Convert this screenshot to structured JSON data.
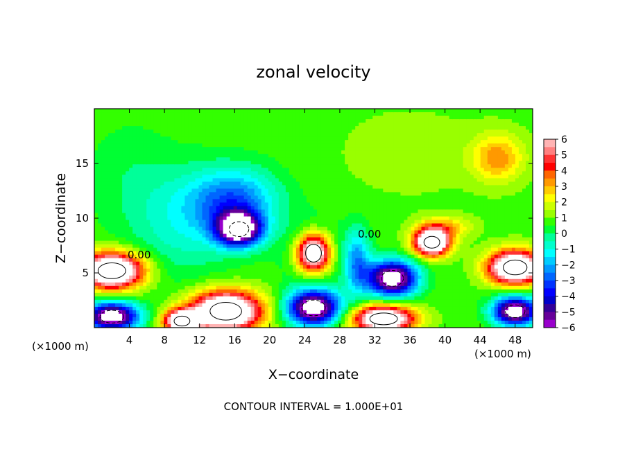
{
  "chart_data": {
    "type": "heatmap",
    "title": "zonal velocity",
    "xlabel": "X−coordinate",
    "ylabel": "Z−coordinate",
    "x_unit_left": "(×1000 m)",
    "x_unit_right": "(×1000 m)",
    "footer": "CONTOUR INTERVAL = 1.000E+01",
    "xlim": [
      0,
      50
    ],
    "ylim": [
      0,
      20
    ],
    "x_ticks": [
      4,
      8,
      12,
      16,
      20,
      24,
      28,
      32,
      36,
      40,
      44,
      48
    ],
    "y_ticks": [
      5,
      10,
      15
    ],
    "contour_labels": [
      "0.00",
      "0.00"
    ],
    "colorbar": {
      "ticks": [
        6,
        5,
        4,
        3,
        2,
        1,
        0,
        -1,
        -2,
        -3,
        -4,
        -5,
        -6
      ],
      "range": [
        -6,
        6
      ],
      "colors": [
        "#ffb3b3",
        "#ff8080",
        "#ff3333",
        "#ff0000",
        "#ff6600",
        "#ff9900",
        "#ffcc00",
        "#ffff00",
        "#ccff00",
        "#99ff00",
        "#33ff00",
        "#00ff33",
        "#00ff99",
        "#00ffcc",
        "#00ffff",
        "#00ccff",
        "#0099ff",
        "#0066ff",
        "#0033ff",
        "#0000ff",
        "#0000cc",
        "#330099",
        "#660099",
        "#9900cc"
      ]
    },
    "blobs": [
      {
        "x": 16.5,
        "z": 9.0,
        "sx": 2.5,
        "sy": 1.5,
        "v": -8
      },
      {
        "x": 16.0,
        "z": 11.5,
        "sx": 5.0,
        "sy": 3.0,
        "v": -3.5
      },
      {
        "x": 10.0,
        "z": 9.5,
        "sx": 6.0,
        "sy": 5.0,
        "v": -1.5
      },
      {
        "x": 25.0,
        "z": 6.8,
        "sx": 2.0,
        "sy": 1.8,
        "v": 9
      },
      {
        "x": 25.0,
        "z": 6.8,
        "sx": 3.2,
        "sy": 2.8,
        "v": -2
      },
      {
        "x": 34.0,
        "z": 4.5,
        "sx": 2.8,
        "sy": 1.6,
        "v": -8
      },
      {
        "x": 38.5,
        "z": 7.8,
        "sx": 2.0,
        "sy": 1.2,
        "v": 9
      },
      {
        "x": 2.0,
        "z": 5.2,
        "sx": 3.5,
        "sy": 1.6,
        "v": 9
      },
      {
        "x": 2.0,
        "z": 1.0,
        "sx": 3.0,
        "sy": 1.3,
        "v": -8
      },
      {
        "x": 15.0,
        "z": 1.5,
        "sx": 4.0,
        "sy": 1.8,
        "v": 9
      },
      {
        "x": 10.0,
        "z": 0.6,
        "sx": 2.0,
        "sy": 1.0,
        "v": 8
      },
      {
        "x": 25.0,
        "z": 1.8,
        "sx": 3.0,
        "sy": 1.6,
        "v": -8
      },
      {
        "x": 33.0,
        "z": 0.8,
        "sx": 3.5,
        "sy": 1.2,
        "v": 8
      },
      {
        "x": 48.0,
        "z": 5.5,
        "sx": 3.0,
        "sy": 1.5,
        "v": 9
      },
      {
        "x": 48.0,
        "z": 1.5,
        "sx": 2.5,
        "sy": 1.3,
        "v": -8
      },
      {
        "x": 46.0,
        "z": 15.5,
        "sx": 3.0,
        "sy": 2.2,
        "v": 2.5
      },
      {
        "x": 4.0,
        "z": 14.0,
        "sx": 5.0,
        "sy": 5.0,
        "v": -0.6
      },
      {
        "x": 30.0,
        "z": 6.0,
        "sx": 1.5,
        "sy": 3.0,
        "v": -3
      },
      {
        "x": 40.0,
        "z": 9.2,
        "sx": 3.0,
        "sy": 1.0,
        "v": 2
      },
      {
        "x": 36.0,
        "z": 16.0,
        "sx": 8.0,
        "sy": 4.0,
        "v": 0.5
      }
    ]
  }
}
